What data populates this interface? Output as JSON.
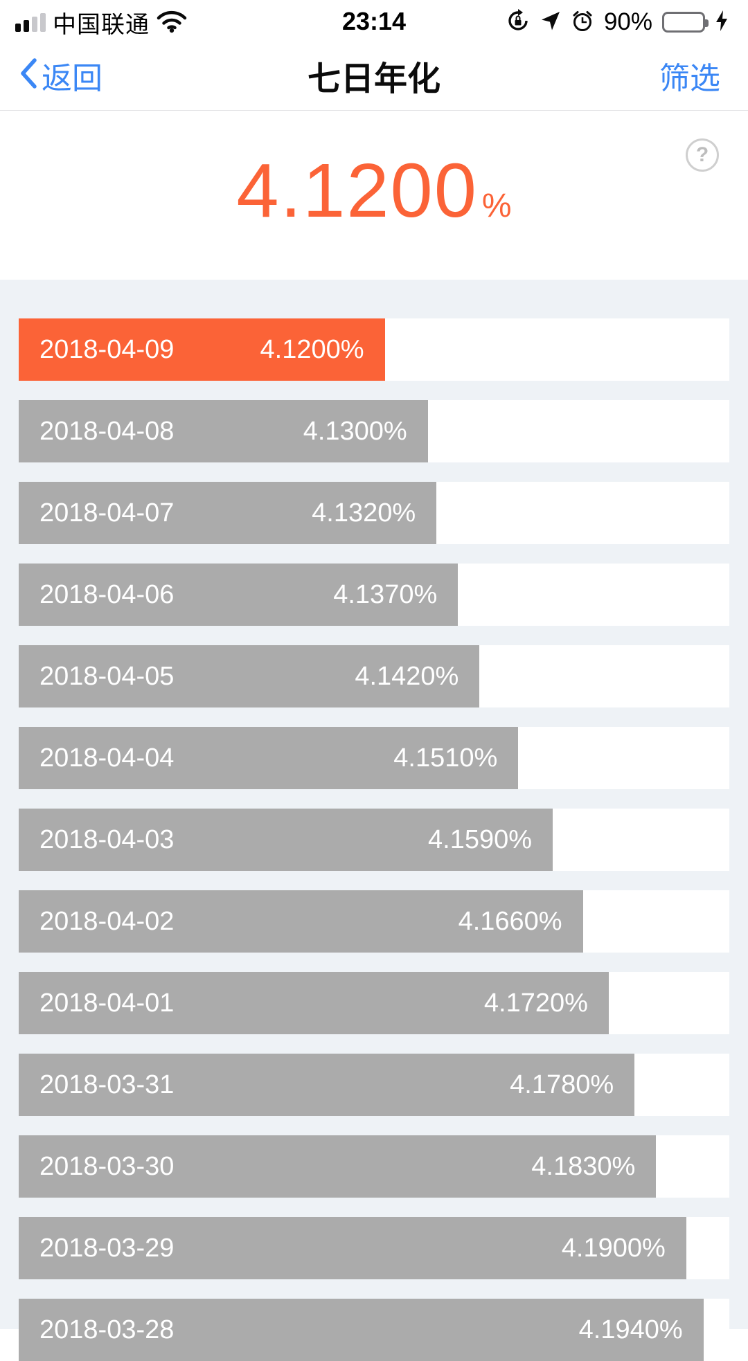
{
  "status_bar": {
    "carrier": "中国联通",
    "time": "23:14",
    "battery_percent": "90%"
  },
  "nav": {
    "back_label": "返回",
    "title": "七日年化",
    "filter_label": "筛选"
  },
  "hero": {
    "value": "4.1200",
    "unit": "%",
    "help_glyph": "?"
  },
  "colors": {
    "accent_orange": "#fb6337",
    "bar_gray": "#ababab",
    "link_blue": "#3b87f5",
    "chart_bg": "#eef2f6"
  },
  "chart_data": {
    "type": "bar",
    "orientation": "horizontal",
    "title": "七日年化",
    "categories": [
      "2018-04-09",
      "2018-04-08",
      "2018-04-07",
      "2018-04-06",
      "2018-04-05",
      "2018-04-04",
      "2018-04-03",
      "2018-04-02",
      "2018-04-01",
      "2018-03-31",
      "2018-03-30",
      "2018-03-29",
      "2018-03-28"
    ],
    "values": [
      4.12,
      4.13,
      4.132,
      4.137,
      4.142,
      4.151,
      4.159,
      4.166,
      4.172,
      4.178,
      4.183,
      4.19,
      4.194
    ],
    "labels": [
      "4.1200%",
      "4.1300%",
      "4.1320%",
      "4.1370%",
      "4.1420%",
      "4.1510%",
      "4.1590%",
      "4.1660%",
      "4.1720%",
      "4.1780%",
      "4.1830%",
      "4.1900%",
      "4.1940%"
    ],
    "highlight_index": 0,
    "highlight_color": "#fb6337",
    "bar_color": "#ababab",
    "xlim": [
      4.035,
      4.2
    ],
    "grid": false,
    "legend": false
  }
}
